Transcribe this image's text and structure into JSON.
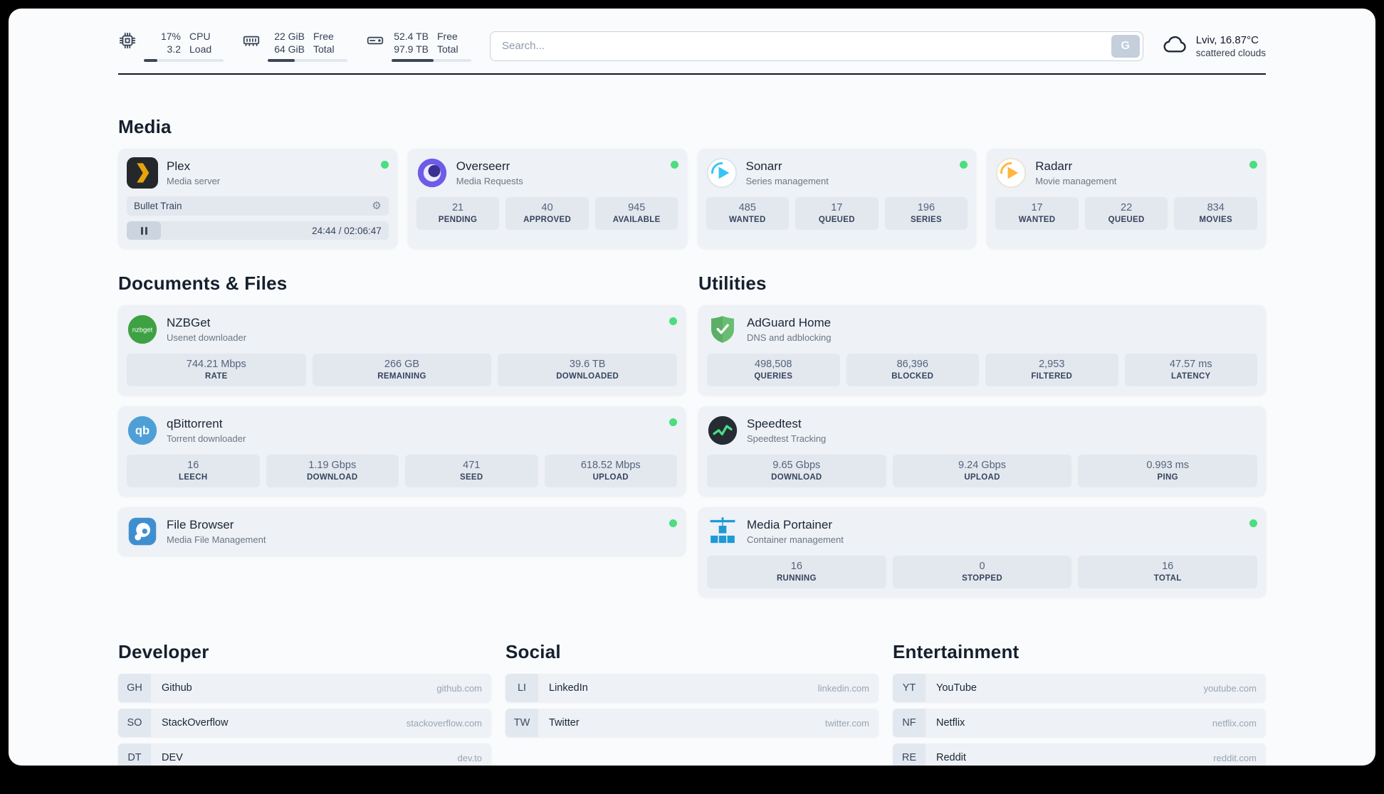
{
  "topbar": {
    "cpu": {
      "percent": "17%",
      "load": "3.2",
      "label1": "CPU",
      "label2": "Load",
      "bar_percent": 17
    },
    "memory": {
      "free": "22 GiB",
      "total": "64 GiB",
      "label1": "Free",
      "label2": "Total",
      "bar_percent": 34
    },
    "disk": {
      "free": "52.4 TB",
      "total": "97.9 TB",
      "label1": "Free",
      "label2": "Total",
      "bar_percent": 53
    },
    "search": {
      "placeholder": "Search...",
      "provider": "G"
    },
    "weather": {
      "location": "Lviv, 16.87°C",
      "condition": "scattered clouds"
    }
  },
  "icons": {
    "gear": "⚙"
  },
  "media": {
    "title": "Media",
    "plex": {
      "name": "Plex",
      "subtitle": "Media server",
      "now_playing": "Bullet Train",
      "time": "24:44 / 02:06:47"
    },
    "overseerr": {
      "name": "Overseerr",
      "subtitle": "Media Requests",
      "stats": [
        {
          "value": "21",
          "label": "PENDING"
        },
        {
          "value": "40",
          "label": "APPROVED"
        },
        {
          "value": "945",
          "label": "AVAILABLE"
        }
      ]
    },
    "sonarr": {
      "name": "Sonarr",
      "subtitle": "Series management",
      "stats": [
        {
          "value": "485",
          "label": "WANTED"
        },
        {
          "value": "17",
          "label": "QUEUED"
        },
        {
          "value": "196",
          "label": "SERIES"
        }
      ]
    },
    "radarr": {
      "name": "Radarr",
      "subtitle": "Movie management",
      "stats": [
        {
          "value": "17",
          "label": "WANTED"
        },
        {
          "value": "22",
          "label": "QUEUED"
        },
        {
          "value": "834",
          "label": "MOVIES"
        }
      ]
    }
  },
  "documents": {
    "title": "Documents & Files",
    "nzbget": {
      "name": "NZBGet",
      "subtitle": "Usenet downloader",
      "stats": [
        {
          "value": "744.21 Mbps",
          "label": "RATE"
        },
        {
          "value": "266 GB",
          "label": "REMAINING"
        },
        {
          "value": "39.6 TB",
          "label": "DOWNLOADED"
        }
      ]
    },
    "qbittorrent": {
      "name": "qBittorrent",
      "subtitle": "Torrent downloader",
      "stats": [
        {
          "value": "16",
          "label": "LEECH"
        },
        {
          "value": "1.19 Gbps",
          "label": "DOWNLOAD"
        },
        {
          "value": "471",
          "label": "SEED"
        },
        {
          "value": "618.52 Mbps",
          "label": "UPLOAD"
        }
      ]
    },
    "filebrowser": {
      "name": "File Browser",
      "subtitle": "Media File Management"
    }
  },
  "utilities": {
    "title": "Utilities",
    "adguard": {
      "name": "AdGuard Home",
      "subtitle": "DNS and adblocking",
      "stats": [
        {
          "value": "498,508",
          "label": "QUERIES"
        },
        {
          "value": "86,396",
          "label": "BLOCKED"
        },
        {
          "value": "2,953",
          "label": "FILTERED"
        },
        {
          "value": "47.57 ms",
          "label": "LATENCY"
        }
      ]
    },
    "speedtest": {
      "name": "Speedtest",
      "subtitle": "Speedtest Tracking",
      "stats": [
        {
          "value": "9.65 Gbps",
          "label": "DOWNLOAD"
        },
        {
          "value": "9.24 Gbps",
          "label": "UPLOAD"
        },
        {
          "value": "0.993 ms",
          "label": "PING"
        }
      ]
    },
    "portainer": {
      "name": "Media Portainer",
      "subtitle": "Container management",
      "stats": [
        {
          "value": "16",
          "label": "RUNNING"
        },
        {
          "value": "0",
          "label": "STOPPED"
        },
        {
          "value": "16",
          "label": "TOTAL"
        }
      ]
    }
  },
  "bookmarks": [
    {
      "title": "Developer",
      "items": [
        {
          "abbr": "GH",
          "name": "Github",
          "domain": "github.com"
        },
        {
          "abbr": "SO",
          "name": "StackOverflow",
          "domain": "stackoverflow.com"
        },
        {
          "abbr": "DT",
          "name": "DEV",
          "domain": "dev.to"
        }
      ]
    },
    {
      "title": "Social",
      "items": [
        {
          "abbr": "LI",
          "name": "LinkedIn",
          "domain": "linkedin.com"
        },
        {
          "abbr": "TW",
          "name": "Twitter",
          "domain": "twitter.com"
        }
      ]
    },
    {
      "title": "Entertainment",
      "items": [
        {
          "abbr": "YT",
          "name": "YouTube",
          "domain": "youtube.com"
        },
        {
          "abbr": "NF",
          "name": "Netflix",
          "domain": "netflix.com"
        },
        {
          "abbr": "RE",
          "name": "Reddit",
          "domain": "reddit.com"
        }
      ]
    }
  ]
}
